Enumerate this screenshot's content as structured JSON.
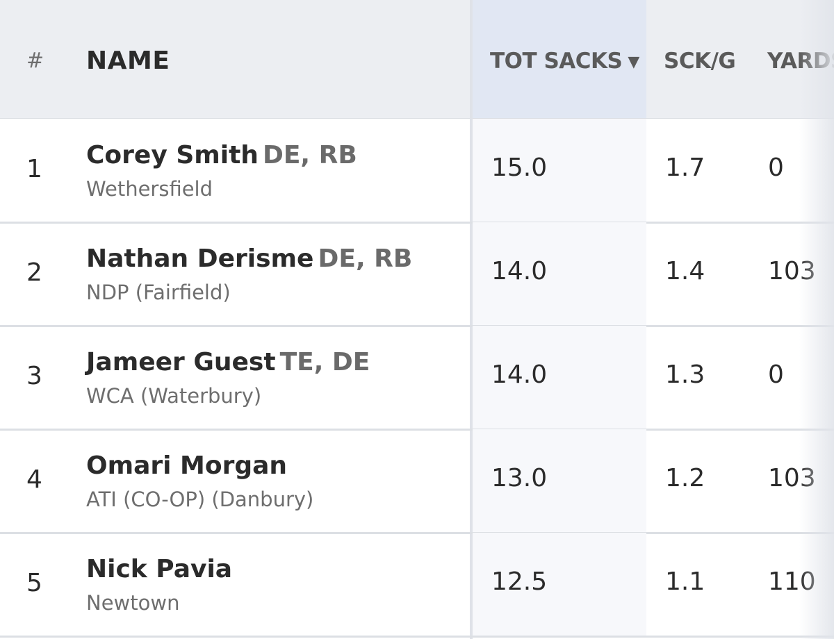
{
  "header": {
    "rank": "#",
    "name": "NAME",
    "tot_sacks": "TOT SACKS",
    "sort_indicator": "▼",
    "sck_g": "SCK/G",
    "yards": "YARDS"
  },
  "rows": [
    {
      "rank": "1",
      "name": "Corey Smith",
      "positions": "DE, RB",
      "school": "Wethersfield",
      "tot_sacks": "15.0",
      "sck_g": "1.7",
      "yards": "0"
    },
    {
      "rank": "2",
      "name": "Nathan Derisme",
      "positions": "DE, RB",
      "school": "NDP (Fairfield)",
      "tot_sacks": "14.0",
      "sck_g": "1.4",
      "yards": "103"
    },
    {
      "rank": "3",
      "name": "Jameer Guest",
      "positions": "TE, DE",
      "school": "WCA (Waterbury)",
      "tot_sacks": "14.0",
      "sck_g": "1.3",
      "yards": "0"
    },
    {
      "rank": "4",
      "name": "Omari Morgan",
      "positions": "",
      "school": "ATI (CO-OP) (Danbury)",
      "tot_sacks": "13.0",
      "sck_g": "1.2",
      "yards": "103"
    },
    {
      "rank": "5",
      "name": "Nick Pavia",
      "positions": "",
      "school": "Newtown",
      "tot_sacks": "12.5",
      "sck_g": "1.1",
      "yards": "110"
    }
  ],
  "colors": {
    "header_bg": "#eceef2",
    "sorted_header_bg": "#e1e7f3",
    "sorted_cell_bg": "#f7f8fb",
    "text_primary": "#2b2b2b",
    "text_secondary": "#6e6e6e"
  }
}
